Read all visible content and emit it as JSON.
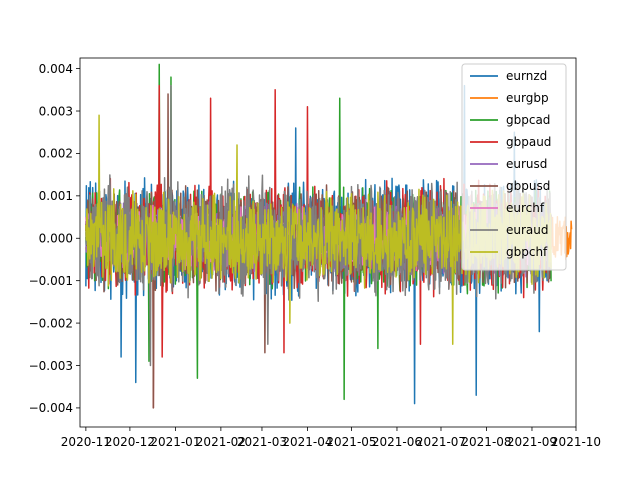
{
  "chart_data": {
    "type": "line",
    "title": "",
    "xlabel": "",
    "ylabel": "",
    "x_range": [
      "2020-10-28",
      "2021-10-01"
    ],
    "y_range": [
      -0.00445,
      0.00425
    ],
    "grid": false,
    "legend_position": "top-right",
    "x_ticks": [
      {
        "date": "2020-11-01",
        "label": "2020-11"
      },
      {
        "date": "2020-12-01",
        "label": "2020-12"
      },
      {
        "date": "2021-01-01",
        "label": "2021-01"
      },
      {
        "date": "2021-02-01",
        "label": "2021-02"
      },
      {
        "date": "2021-03-01",
        "label": "2021-03"
      },
      {
        "date": "2021-04-01",
        "label": "2021-04"
      },
      {
        "date": "2021-05-01",
        "label": "2021-05"
      },
      {
        "date": "2021-06-01",
        "label": "2021-06"
      },
      {
        "date": "2021-07-01",
        "label": "2021-07"
      },
      {
        "date": "2021-08-01",
        "label": "2021-08"
      },
      {
        "date": "2021-09-01",
        "label": "2021-09"
      },
      {
        "date": "2021-10-01",
        "label": "2021-10"
      }
    ],
    "y_ticks": [
      {
        "value": 0.004,
        "label": "0.004"
      },
      {
        "value": 0.003,
        "label": "0.003"
      },
      {
        "value": 0.002,
        "label": "0.002"
      },
      {
        "value": 0.001,
        "label": "0.001"
      },
      {
        "value": 0.0,
        "label": "0.000"
      },
      {
        "value": -0.001,
        "label": "−0.001"
      },
      {
        "value": -0.002,
        "label": "−0.002"
      },
      {
        "value": -0.003,
        "label": "−0.003"
      },
      {
        "value": -0.004,
        "label": "−0.004"
      }
    ],
    "series": [
      {
        "name": "eurnzd",
        "color": "#1f77b4",
        "start": "2020-11-01",
        "end": "2021-09-14",
        "amplitude": 0.0013,
        "peaks": [
          [
            "2021-07-17",
            0.0036
          ],
          [
            "2021-06-13",
            -0.0039
          ],
          [
            "2021-07-25",
            -0.0037
          ],
          [
            "2020-11-25",
            -0.0028
          ],
          [
            "2020-12-05",
            -0.0034
          ],
          [
            "2021-03-24",
            0.0026
          ],
          [
            "2021-08-20",
            0.0025
          ],
          [
            "2021-09-06",
            -0.0022
          ]
        ]
      },
      {
        "name": "eurgbp",
        "color": "#ff7f0e",
        "start": "2020-11-01",
        "end": "2021-09-28",
        "amplitude": 0.0005,
        "peaks": [
          [
            "2021-09-24",
            -0.0005
          ],
          [
            "2021-09-20",
            0.0004
          ]
        ]
      },
      {
        "name": "gbpcad",
        "color": "#2ca02c",
        "start": "2020-11-01",
        "end": "2021-09-14",
        "amplitude": 0.0011,
        "peaks": [
          [
            "2020-12-21",
            0.0041
          ],
          [
            "2020-12-29",
            0.0038
          ],
          [
            "2021-04-23",
            0.0033
          ],
          [
            "2021-04-26",
            -0.0038
          ],
          [
            "2021-01-16",
            -0.0033
          ],
          [
            "2020-12-14",
            -0.0029
          ],
          [
            "2021-05-19",
            -0.0026
          ]
        ]
      },
      {
        "name": "gbpaud",
        "color": "#d62728",
        "start": "2020-11-01",
        "end": "2021-09-14",
        "amplitude": 0.0012,
        "peaks": [
          [
            "2021-01-25",
            0.0033
          ],
          [
            "2021-03-10",
            0.0035
          ],
          [
            "2021-04-01",
            0.0031
          ],
          [
            "2020-12-21",
            0.0036
          ],
          [
            "2020-12-17",
            -0.004
          ],
          [
            "2020-12-23",
            -0.0028
          ],
          [
            "2021-06-17",
            -0.0025
          ],
          [
            "2021-03-16",
            -0.0027
          ]
        ]
      },
      {
        "name": "eurusd",
        "color": "#9467bd",
        "start": "2020-11-01",
        "end": "2021-09-14",
        "amplitude": 0.0008,
        "peaks": []
      },
      {
        "name": "gbpusd",
        "color": "#8c564b",
        "start": "2020-11-01",
        "end": "2021-09-14",
        "amplitude": 0.0011,
        "peaks": [
          [
            "2020-12-17",
            -0.004
          ],
          [
            "2020-12-27",
            0.0034
          ],
          [
            "2021-03-03",
            -0.0027
          ]
        ]
      },
      {
        "name": "eurchf",
        "color": "#e377c2",
        "start": "2020-11-01",
        "end": "2021-09-14",
        "amplitude": 0.0007,
        "peaks": []
      },
      {
        "name": "euraud",
        "color": "#7f7f7f",
        "start": "2020-11-01",
        "end": "2021-09-14",
        "amplitude": 0.0013,
        "peaks": [
          [
            "2020-12-29",
            0.0036
          ],
          [
            "2021-03-05",
            -0.0025
          ],
          [
            "2020-12-15",
            -0.003
          ]
        ]
      },
      {
        "name": "gbpchf",
        "color": "#bcbd22",
        "start": "2020-11-01",
        "end": "2021-09-14",
        "amplitude": 0.001,
        "peaks": [
          [
            "2020-11-10",
            0.0029
          ],
          [
            "2021-07-09",
            -0.0025
          ],
          [
            "2021-02-12",
            0.0022
          ],
          [
            "2021-03-20",
            -0.002
          ]
        ]
      }
    ]
  }
}
